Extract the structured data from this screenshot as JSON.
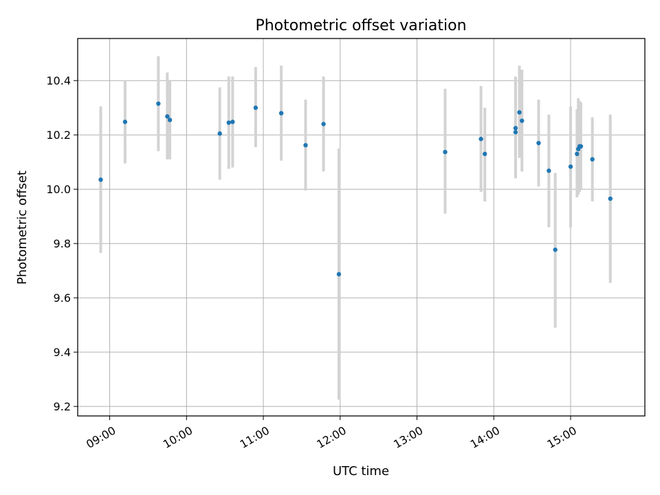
{
  "chart_data": {
    "type": "scatter",
    "title": "Photometric offset variation",
    "xlabel": "UTC time",
    "ylabel": "Photometric offset",
    "x_ticks": [
      "09:00",
      "10:00",
      "11:00",
      "12:00",
      "13:00",
      "14:00",
      "15:00"
    ],
    "y_ticks": [
      "9.2",
      "9.4",
      "9.6",
      "9.8",
      "10.0",
      "10.2",
      "10.4"
    ],
    "grid": true,
    "xlim": [
      "08:35",
      "15:58"
    ],
    "ylim": [
      9.165,
      10.555
    ],
    "colors": {
      "point": "#1f77b4",
      "errorbar": "#d3d3d3",
      "grid": "#b0b0b0"
    },
    "series": [
      {
        "points": [
          {
            "x": "08:53",
            "y": 10.035,
            "err_low": 9.765,
            "err_high": 10.305
          },
          {
            "x": "09:12",
            "y": 10.248,
            "err_low": 10.095,
            "err_high": 10.4
          },
          {
            "x": "09:38",
            "y": 10.315,
            "err_low": 10.14,
            "err_high": 10.49
          },
          {
            "x": "09:45",
            "y": 10.268,
            "err_low": 10.11,
            "err_high": 10.43
          },
          {
            "x": "09:47",
            "y": 10.255,
            "err_low": 10.11,
            "err_high": 10.4
          },
          {
            "x": "10:26",
            "y": 10.205,
            "err_low": 10.035,
            "err_high": 10.375
          },
          {
            "x": "10:33",
            "y": 10.245,
            "err_low": 10.075,
            "err_high": 10.415
          },
          {
            "x": "10:36",
            "y": 10.248,
            "err_low": 10.08,
            "err_high": 10.415
          },
          {
            "x": "10:54",
            "y": 10.3,
            "err_low": 10.155,
            "err_high": 10.45
          },
          {
            "x": "11:14",
            "y": 10.28,
            "err_low": 10.105,
            "err_high": 10.455
          },
          {
            "x": "11:33",
            "y": 10.162,
            "err_low": 9.995,
            "err_high": 10.33
          },
          {
            "x": "11:47",
            "y": 10.24,
            "err_low": 10.065,
            "err_high": 10.415
          },
          {
            "x": "11:59",
            "y": 9.687,
            "err_low": 9.225,
            "err_high": 10.15
          },
          {
            "x": "13:22",
            "y": 10.137,
            "err_low": 9.91,
            "err_high": 10.37
          },
          {
            "x": "13:50",
            "y": 10.185,
            "err_low": 9.99,
            "err_high": 10.38
          },
          {
            "x": "13:53",
            "y": 10.13,
            "err_low": 9.955,
            "err_high": 10.3
          },
          {
            "x": "14:17",
            "y": 10.225,
            "err_low": 10.04,
            "err_high": 10.415
          },
          {
            "x": "14:17",
            "y": 10.21,
            "err_low": 10.04,
            "err_high": 10.4
          },
          {
            "x": "14:20",
            "y": 10.283,
            "err_low": 10.115,
            "err_high": 10.455
          },
          {
            "x": "14:22",
            "y": 10.252,
            "err_low": 10.065,
            "err_high": 10.44
          },
          {
            "x": "14:35",
            "y": 10.17,
            "err_low": 10.01,
            "err_high": 10.33
          },
          {
            "x": "14:43",
            "y": 10.068,
            "err_low": 9.86,
            "err_high": 10.275
          },
          {
            "x": "14:48",
            "y": 9.777,
            "err_low": 9.49,
            "err_high": 10.06
          },
          {
            "x": "15:00",
            "y": 10.083,
            "err_low": 9.86,
            "err_high": 10.305
          },
          {
            "x": "15:05",
            "y": 10.13,
            "err_low": 9.97,
            "err_high": 10.295
          },
          {
            "x": "15:06",
            "y": 10.148,
            "err_low": 9.98,
            "err_high": 10.335
          },
          {
            "x": "15:07",
            "y": 10.158,
            "err_low": 9.99,
            "err_high": 10.325
          },
          {
            "x": "15:08",
            "y": 10.158,
            "err_low": 10.0,
            "err_high": 10.32
          },
          {
            "x": "15:17",
            "y": 10.11,
            "err_low": 9.955,
            "err_high": 10.265
          },
          {
            "x": "15:31",
            "y": 9.965,
            "err_low": 9.655,
            "err_high": 10.275
          }
        ]
      }
    ]
  }
}
